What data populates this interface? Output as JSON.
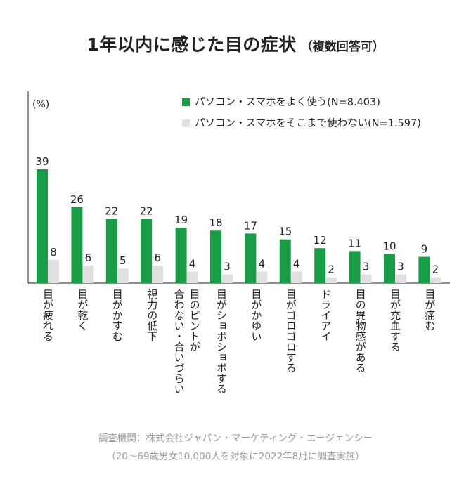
{
  "chart_data": {
    "type": "bar",
    "title": "1年以内に感じた目の症状",
    "subtitle": "（複数回答可）",
    "ylabel": "(%)",
    "ylim": [
      0,
      42
    ],
    "grid": false,
    "legend_position": "top-right",
    "categories": [
      [
        "目が疲れる"
      ],
      [
        "目が乾く"
      ],
      [
        "目がかすむ"
      ],
      [
        "視力の低下"
      ],
      [
        "目のピントが",
        "合わない・合いづらい"
      ],
      [
        "目がショボショボする"
      ],
      [
        "目がかゆい"
      ],
      [
        "目がゴロゴロする"
      ],
      [
        "ドライアイ"
      ],
      [
        "目の異物感がある"
      ],
      [
        "目が充血する"
      ],
      [
        "目が痛む"
      ]
    ],
    "series": [
      {
        "name": "パソコン・スマホをよく使う(N=8.403)",
        "color": "#1a9c46",
        "values": [
          39,
          26,
          22,
          22,
          19,
          18,
          17,
          15,
          12,
          11,
          10,
          9
        ]
      },
      {
        "name": "パソコン・スマホをそこまで使わない(N=1.597)",
        "color": "#e0e0e0",
        "values": [
          8,
          6,
          5,
          6,
          4,
          3,
          4,
          4,
          2,
          3,
          3,
          2
        ]
      }
    ],
    "source": "調査機関：株式会社ジャパン・マーケティング・エージェンシー",
    "note": "（20〜69歳男女10,000人を対象に2022年8月に調査実施）"
  }
}
